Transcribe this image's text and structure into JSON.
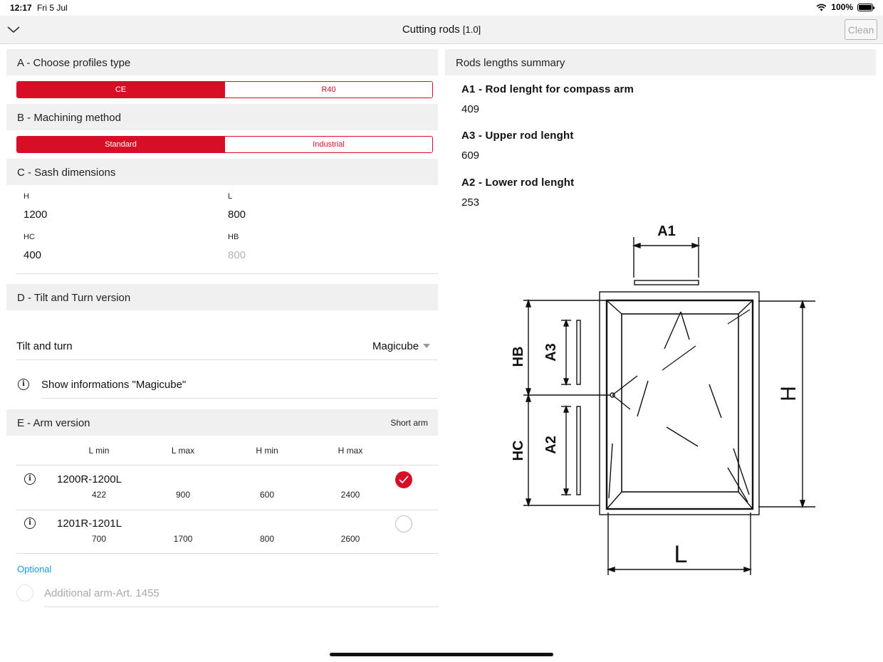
{
  "status_bar": {
    "time": "12:17",
    "date": "Fri 5 Jul",
    "battery": "100%"
  },
  "nav": {
    "title": "Cutting rods",
    "version": "[1.0]",
    "clean_label": "Clean"
  },
  "section_a": {
    "title": "A - Choose profiles type",
    "options": [
      "CE",
      "R40"
    ],
    "selected": "CE"
  },
  "section_b": {
    "title": "B - Machining method",
    "options": [
      "Standard",
      "Industrial"
    ],
    "selected": "Standard"
  },
  "section_c": {
    "title": "C - Sash dimensions",
    "fields": [
      {
        "label": "H",
        "value": "1200"
      },
      {
        "label": "L",
        "value": "800"
      },
      {
        "label": "HC",
        "value": "400"
      },
      {
        "label": "HB",
        "placeholder": "800"
      }
    ]
  },
  "section_d": {
    "title": "D - Tilt and Turn version",
    "tilt_label": "Tilt and turn",
    "tilt_value": "Magicube",
    "info_label": "Show informations \"Magicube\""
  },
  "section_e": {
    "title": "E - Arm version",
    "arm_type": "Short arm",
    "columns": [
      "L min",
      "L max",
      "H min",
      "H max"
    ],
    "rows": [
      {
        "article": "1200R-1200L",
        "values": [
          "422",
          "900",
          "600",
          "2400"
        ],
        "selected": true
      },
      {
        "article": "1201R-1201L",
        "values": [
          "700",
          "1700",
          "800",
          "2600"
        ],
        "selected": false
      }
    ],
    "optional_label": "Optional",
    "additional_arm": "Additional arm-Art. 1455"
  },
  "summary": {
    "title": "Rods lengths summary",
    "items": [
      {
        "title": "A1 - Rod lenght for compass arm",
        "value": "409"
      },
      {
        "title": "A3 - Upper rod lenght",
        "value": "609"
      },
      {
        "title": "A2 - Lower rod lenght",
        "value": "253"
      }
    ]
  },
  "diagram": {
    "labels": {
      "a1": "A1",
      "a2": "A2",
      "a3": "A3",
      "hb": "HB",
      "hc": "HC",
      "h": "H",
      "l": "L"
    }
  },
  "colors": {
    "accent": "#d60f27",
    "link": "#1a9ae0",
    "header_bg": "#f0f0f0"
  }
}
